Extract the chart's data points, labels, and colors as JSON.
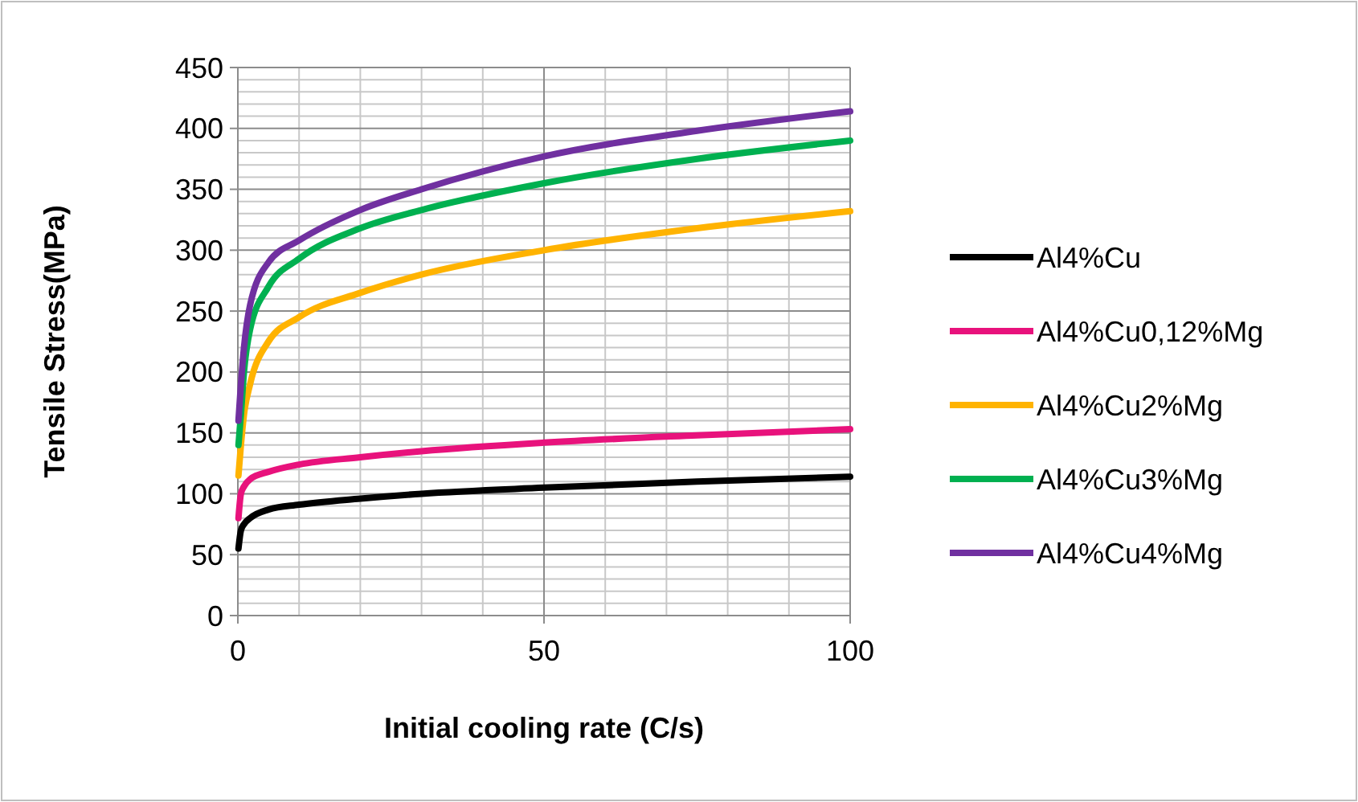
{
  "chart_data": {
    "type": "line",
    "xlabel": "Initial cooling rate (C/s)",
    "ylabel": "Tensile Stress(MPa)",
    "x": [
      0.1,
      0.5,
      1,
      2,
      5,
      10,
      20,
      30,
      50,
      75,
      100
    ],
    "series": [
      {
        "name": "Al4%Cu",
        "color": "#000000",
        "values": [
          55,
          70,
          75,
          80,
          87,
          91,
          96,
          100,
          105,
          110,
          114
        ]
      },
      {
        "name": "Al4%Cu0,12%Mg",
        "color": "#e8127c",
        "values": [
          80,
          100,
          106,
          112,
          118,
          124,
          130,
          135,
          142,
          148,
          153
        ]
      },
      {
        "name": "Al4%Cu2%Mg",
        "color": "#ffb300",
        "values": [
          115,
          140,
          165,
          190,
          225,
          245,
          265,
          280,
          300,
          318,
          332
        ]
      },
      {
        "name": "Al4%Cu3%Mg",
        "color": "#00b050",
        "values": [
          140,
          165,
          200,
          235,
          270,
          293,
          318,
          333,
          355,
          375,
          390
        ]
      },
      {
        "name": "Al4%Cu4%Mg",
        "color": "#7030a0",
        "values": [
          160,
          190,
          220,
          255,
          290,
          308,
          333,
          350,
          377,
          398,
          414
        ]
      }
    ],
    "xlim": [
      0,
      100
    ],
    "xticks": [
      0,
      50,
      100
    ],
    "ylim": [
      0,
      450
    ],
    "yticks": [
      0,
      50,
      100,
      150,
      200,
      250,
      300,
      350,
      400,
      450
    ],
    "grid": true,
    "legend": "right",
    "marker": "none",
    "line_style": "solid"
  }
}
